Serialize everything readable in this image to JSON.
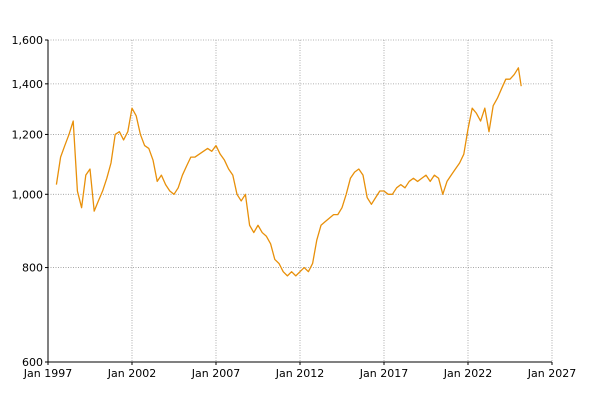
{
  "chart_data": {
    "type": "line",
    "title": "",
    "xlabel": "",
    "ylabel": "",
    "scale": {
      "y": "log"
    },
    "grid": true,
    "legend": "none",
    "line_color": "#e8900a",
    "grid_color": "#9a9a9a",
    "xlim": [
      "1997-01",
      "2027-01"
    ],
    "ylim": [
      600,
      1600
    ],
    "x_ticks": [
      "Jan 1997",
      "Jan 2002",
      "Jan 2007",
      "Jan 2012",
      "Jan 2017",
      "Jan 2022",
      "Jan 2027"
    ],
    "y_ticks": [
      "600",
      "800",
      "1,000",
      "1,200",
      "1,400",
      "1,600"
    ],
    "y_tick_values": [
      600,
      800,
      1000,
      1200,
      1400,
      1600
    ],
    "series": [
      {
        "name": "",
        "x": [
          "1997-07",
          "1997-10",
          "1998-01",
          "1998-04",
          "1998-07",
          "1998-10",
          "1999-01",
          "1999-04",
          "1999-07",
          "1999-10",
          "2000-01",
          "2000-04",
          "2000-07",
          "2000-10",
          "2001-01",
          "2001-04",
          "2001-07",
          "2001-10",
          "2002-01",
          "2002-04",
          "2002-07",
          "2002-10",
          "2003-01",
          "2003-04",
          "2003-07",
          "2003-10",
          "2004-01",
          "2004-04",
          "2004-07",
          "2004-10",
          "2005-01",
          "2005-04",
          "2005-07",
          "2005-10",
          "2006-01",
          "2006-04",
          "2006-07",
          "2006-10",
          "2007-01",
          "2007-04",
          "2007-07",
          "2007-10",
          "2008-01",
          "2008-04",
          "2008-07",
          "2008-10",
          "2009-01",
          "2009-04",
          "2009-07",
          "2009-10",
          "2010-01",
          "2010-04",
          "2010-07",
          "2010-10",
          "2011-01",
          "2011-04",
          "2011-07",
          "2011-10",
          "2012-01",
          "2012-04",
          "2012-07",
          "2012-10",
          "2013-01",
          "2013-04",
          "2013-07",
          "2013-10",
          "2014-01",
          "2014-04",
          "2014-07",
          "2014-10",
          "2015-01",
          "2015-04",
          "2015-07",
          "2015-10",
          "2016-01",
          "2016-04",
          "2016-07",
          "2016-10",
          "2017-01",
          "2017-04",
          "2017-07",
          "2017-10",
          "2018-01",
          "2018-04",
          "2018-07",
          "2018-10",
          "2019-01",
          "2019-04",
          "2019-07",
          "2019-10",
          "2020-01",
          "2020-04",
          "2020-07",
          "2020-10",
          "2021-01",
          "2021-04",
          "2021-07",
          "2021-10",
          "2022-01",
          "2022-04",
          "2022-07",
          "2022-10",
          "2023-01",
          "2023-04",
          "2023-07",
          "2023-10",
          "2024-01",
          "2024-04",
          "2024-07",
          "2024-10",
          "2025-01",
          "2025-03"
        ],
        "values": [
          1030,
          1120,
          1160,
          1200,
          1250,
          1010,
          960,
          1060,
          1080,
          950,
          980,
          1010,
          1050,
          1100,
          1200,
          1210,
          1180,
          1210,
          1300,
          1270,
          1200,
          1160,
          1150,
          1110,
          1040,
          1060,
          1030,
          1010,
          1000,
          1020,
          1060,
          1090,
          1120,
          1120,
          1130,
          1140,
          1150,
          1140,
          1160,
          1130,
          1110,
          1080,
          1060,
          1000,
          980,
          1000,
          910,
          890,
          910,
          890,
          880,
          860,
          820,
          810,
          790,
          780,
          790,
          780,
          790,
          800,
          790,
          810,
          870,
          910,
          920,
          930,
          940,
          940,
          960,
          1000,
          1050,
          1070,
          1080,
          1060,
          990,
          970,
          990,
          1010,
          1010,
          1000,
          1000,
          1020,
          1030,
          1020,
          1040,
          1050,
          1040,
          1050,
          1060,
          1040,
          1060,
          1050,
          1000,
          1040,
          1060,
          1080,
          1100,
          1130,
          1220,
          1300,
          1280,
          1250,
          1300,
          1210,
          1310,
          1340,
          1380,
          1420,
          1420,
          1440,
          1470,
          1390
        ]
      }
    ]
  }
}
